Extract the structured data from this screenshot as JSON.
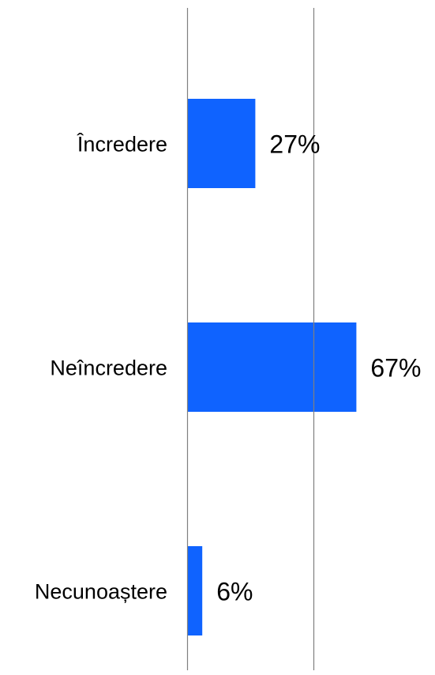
{
  "chart_data": {
    "type": "bar",
    "orientation": "horizontal",
    "categories": [
      "Încredere",
      "Neîncredere",
      "Necunoaștere"
    ],
    "values": [
      27,
      67,
      6
    ],
    "data_labels": [
      "27%",
      "67%",
      "6%"
    ],
    "unit": "%",
    "xlim": [
      0,
      100
    ],
    "gridlines_at": [
      0,
      50
    ],
    "grid": true,
    "legend": "none",
    "colors": {
      "bar": "#0f63ff",
      "gridline": "#808080",
      "text": "#000000"
    }
  }
}
